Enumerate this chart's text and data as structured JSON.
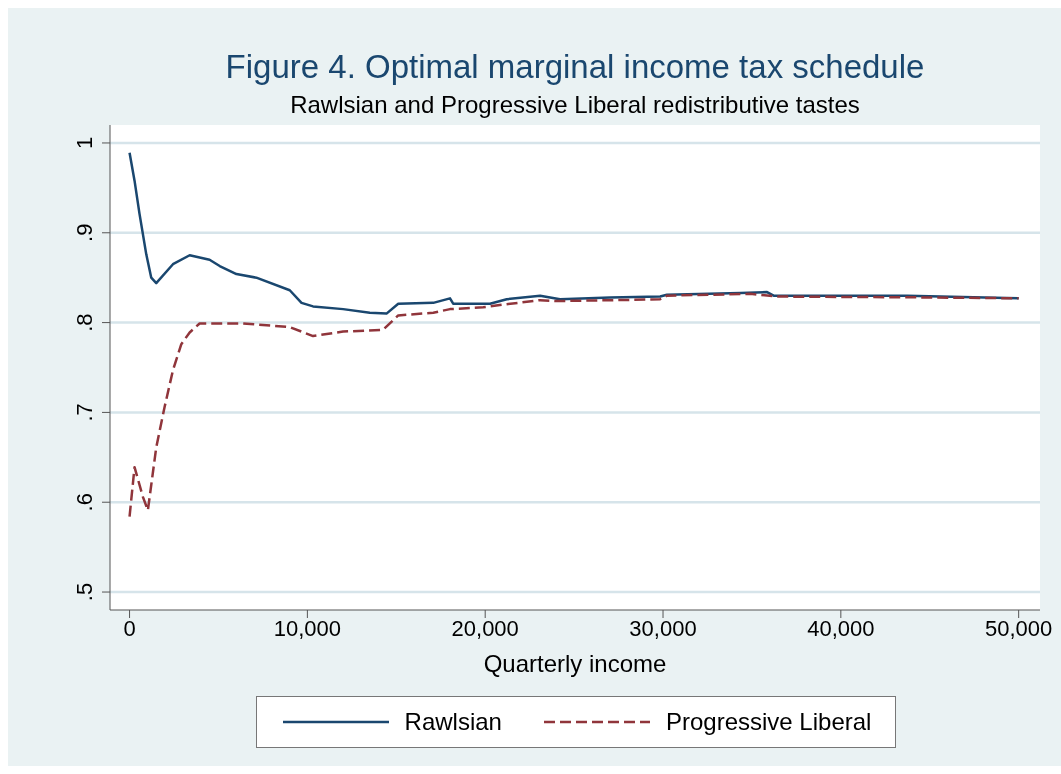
{
  "chart_data": {
    "type": "line",
    "title": "Figure 4. Optimal marginal income tax schedule",
    "subtitle": "Rawlsian and Progressive Liberal redistributive tastes",
    "xlabel": "Quarterly income",
    "xlim": [
      -1100,
      51200
    ],
    "xticks": [
      {
        "value": 0,
        "label": "0"
      },
      {
        "value": 10000,
        "label": "10,000"
      },
      {
        "value": 20000,
        "label": "20,000"
      },
      {
        "value": 30000,
        "label": "30,000"
      },
      {
        "value": 40000,
        "label": "40,000"
      },
      {
        "value": 50000,
        "label": "50,000"
      }
    ],
    "ylim": [
      0.48,
      1.02
    ],
    "yticks": [
      {
        "value": 0.5,
        "label": ".5"
      },
      {
        "value": 0.6,
        "label": ".6"
      },
      {
        "value": 0.7,
        "label": ".7"
      },
      {
        "value": 0.8,
        "label": ".8"
      },
      {
        "value": 0.9,
        "label": ".9"
      },
      {
        "value": 1,
        "label": "1"
      }
    ],
    "grid": "y",
    "legend": "bottom",
    "marker": "none",
    "series": [
      {
        "name": "Rawlsian",
        "color": "#1a476f",
        "line_style": "solid",
        "x": [
          0,
          280,
          560,
          940,
          1220,
          1500,
          2440,
          3380,
          4500,
          5070,
          6010,
          7130,
          9010,
          9670,
          10320,
          12010,
          13510,
          14450,
          15110,
          17080,
          18020,
          18200,
          20270,
          21210,
          23090,
          24210,
          27030,
          29840,
          30220,
          34350,
          35850,
          36220,
          43730,
          50000
        ],
        "values": [
          0.989,
          0.958,
          0.921,
          0.876,
          0.85,
          0.844,
          0.865,
          0.875,
          0.87,
          0.863,
          0.854,
          0.85,
          0.836,
          0.822,
          0.818,
          0.815,
          0.811,
          0.81,
          0.821,
          0.822,
          0.827,
          0.821,
          0.821,
          0.826,
          0.83,
          0.826,
          0.828,
          0.829,
          0.831,
          0.833,
          0.834,
          0.83,
          0.83,
          0.827
        ]
      },
      {
        "name": "Progressive Liberal",
        "color": "#90353b",
        "line_style": "dashed",
        "x": [
          0,
          280,
          750,
          1030,
          1500,
          1970,
          2440,
          2910,
          3380,
          3940,
          6380,
          9010,
          10320,
          12010,
          14260,
          15110,
          17080,
          18020,
          19890,
          21020,
          23090,
          24020,
          27400,
          29840,
          30220,
          34910,
          36500,
          45000,
          50000
        ],
        "values": [
          0.584,
          0.639,
          0.606,
          0.591,
          0.661,
          0.706,
          0.747,
          0.776,
          0.789,
          0.799,
          0.799,
          0.795,
          0.785,
          0.79,
          0.792,
          0.808,
          0.811,
          0.815,
          0.817,
          0.82,
          0.825,
          0.824,
          0.825,
          0.826,
          0.83,
          0.832,
          0.829,
          0.828,
          0.827
        ]
      }
    ]
  }
}
